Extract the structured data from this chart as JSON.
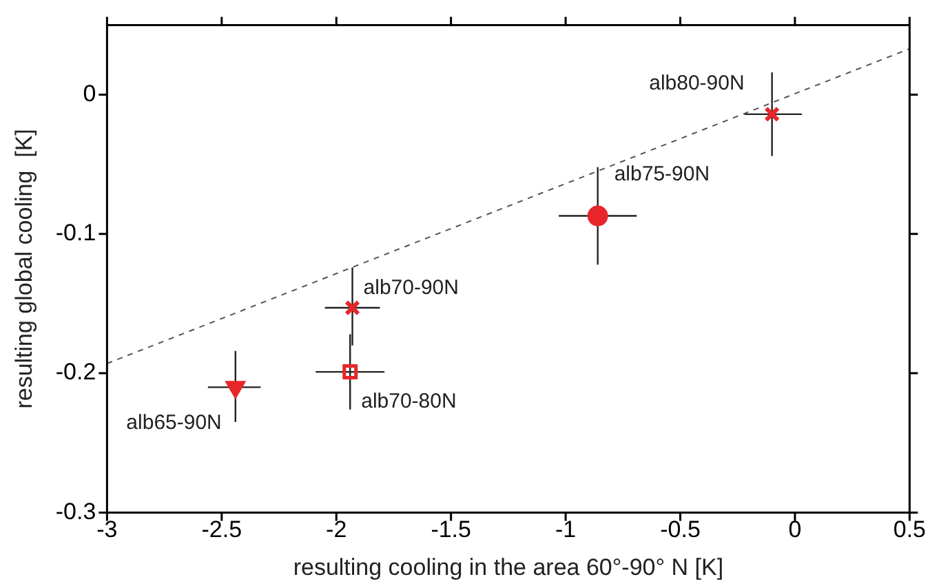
{
  "chart_data": {
    "type": "scatter",
    "xlabel": "resulting cooling in the area 60°-90° N [K]",
    "ylabel": "resulting global cooling  [K]",
    "xlim": [
      -3,
      0.5
    ],
    "xticks": [
      -3,
      -2.5,
      -2,
      -1.5,
      -1,
      -0.5,
      0,
      0.5
    ],
    "ylim": [
      -0.3,
      0.05
    ],
    "yticks": [
      -0.3,
      -0.2,
      -0.1,
      0
    ],
    "grid": false,
    "legend": false,
    "series": [
      {
        "name": "alb65-90N",
        "color": "#e8262a",
        "marker": "triangle",
        "x": [
          -2.44
        ],
        "values": [
          -0.21
        ],
        "errors": [
          [
            -0.235,
            -0.184
          ]
        ],
        "xerrors": [
          [
            -2.56,
            -2.33
          ]
        ]
      },
      {
        "name": "alb70-80N",
        "color": "#e8262a",
        "marker": "square",
        "x": [
          -1.94
        ],
        "values": [
          -0.199
        ],
        "errors": [
          [
            -0.226,
            -0.172
          ]
        ],
        "xerrors": [
          [
            -2.09,
            -1.79
          ]
        ]
      },
      {
        "name": "alb70-90N",
        "color": "#e8262a",
        "marker": "cross",
        "x": [
          -1.93
        ],
        "values": [
          -0.153
        ],
        "errors": [
          [
            -0.18,
            -0.124
          ]
        ],
        "xerrors": [
          [
            -2.05,
            -1.81
          ]
        ]
      },
      {
        "name": "alb75-90N",
        "color": "#e8262a",
        "marker": "circle",
        "x": [
          -0.86
        ],
        "values": [
          -0.087
        ],
        "errors": [
          [
            -0.122,
            -0.052
          ]
        ],
        "xerrors": [
          [
            -1.03,
            -0.69
          ]
        ]
      },
      {
        "name": "alb80-90N",
        "color": "#e8262a",
        "marker": "cross",
        "x": [
          -0.1
        ],
        "values": [
          -0.014
        ],
        "errors": [
          [
            -0.044,
            0.016
          ]
        ],
        "xerrors": [
          [
            -0.22,
            0.03
          ]
        ]
      },
      {
        "type": "line",
        "color": "#555555",
        "line_style": "dashed",
        "marker": "none",
        "x": [
          -3,
          0.5
        ],
        "values": [
          -0.193,
          0.033
        ]
      }
    ]
  }
}
